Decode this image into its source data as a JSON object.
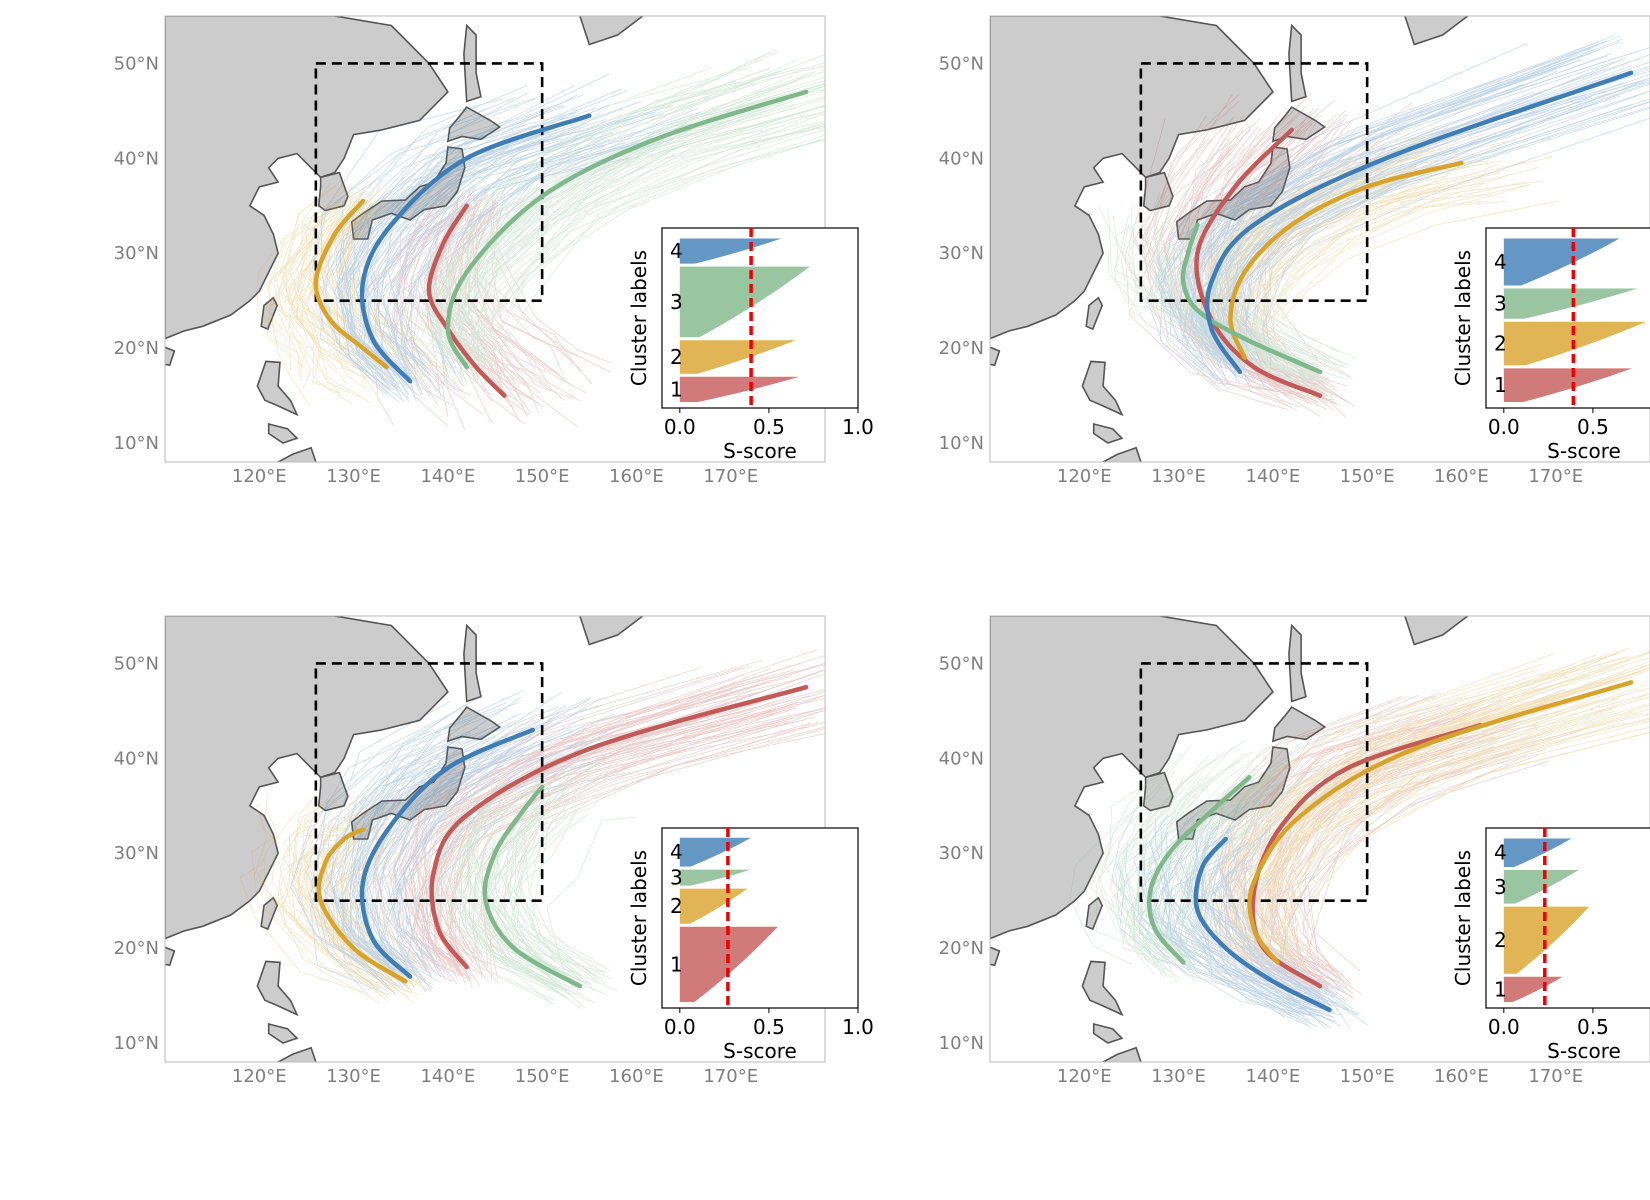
{
  "colors": {
    "cluster_1": "#c45a57",
    "cluster_2": "#d9a32b",
    "cluster_3": "#7fb88a",
    "cluster_4": "#3e7db6",
    "land": "#cccccc",
    "coast": "#555555",
    "box": "#000000",
    "threshold": "#ee0000"
  },
  "map_axes": {
    "x_ticks": [
      "120°E",
      "130°E",
      "140°E",
      "150°E",
      "160°E",
      "170°E"
    ],
    "x_tick_values": [
      120,
      130,
      140,
      150,
      160,
      170
    ],
    "y_ticks": [
      "10°N",
      "20°N",
      "30°N",
      "40°N",
      "50°N"
    ],
    "y_tick_values": [
      10,
      20,
      30,
      40,
      50
    ],
    "xlim": [
      110,
      180
    ],
    "ylim": [
      8,
      55
    ],
    "region_box": {
      "lon": [
        126,
        150
      ],
      "lat": [
        25,
        50
      ]
    }
  },
  "inset_axes": {
    "xlabel": "S-score",
    "ylabel": "Cluster labels",
    "x_ticks": [
      "0.0",
      "0.5",
      "1.0"
    ],
    "x_tick_values": [
      0,
      0.5,
      1.0
    ],
    "xlim": [
      -0.1,
      1.0
    ]
  },
  "chart_data": [
    {
      "type": "line",
      "panel": "top-left",
      "silhouette_threshold": 0.4,
      "series": [
        {
          "label": "1",
          "color_key": "cluster_1",
          "s_max": 0.67,
          "lon": [
            142,
            139.5,
            138,
            140,
            143,
            146
          ],
          "lat": [
            35,
            31,
            26,
            22,
            18,
            15
          ]
        },
        {
          "label": "2",
          "color_key": "cluster_2",
          "s_max": 0.65,
          "lon": [
            131,
            128,
            126,
            127.5,
            131,
            133.5
          ],
          "lat": [
            35.5,
            32,
            27,
            23,
            20,
            18
          ]
        },
        {
          "label": "3",
          "color_key": "cluster_3",
          "s_max": 0.73,
          "lon": [
            142,
            140,
            142,
            150,
            162,
            178
          ],
          "lat": [
            18,
            22,
            28,
            36,
            42,
            47
          ]
        },
        {
          "label": "4",
          "color_key": "cluster_4",
          "s_max": 0.57,
          "lon": [
            136,
            132,
            131,
            134,
            142,
            155
          ],
          "lat": [
            16.5,
            21,
            27,
            33,
            40,
            44.5
          ]
        }
      ],
      "clusters": [
        {
          "label": "1",
          "rel_size": 0.15
        },
        {
          "label": "2",
          "rel_size": 0.2
        },
        {
          "label": "3",
          "rel_size": 0.42
        },
        {
          "label": "4",
          "rel_size": 0.15
        }
      ]
    },
    {
      "type": "line",
      "panel": "top-right",
      "silhouette_threshold": 0.39,
      "series": [
        {
          "label": "1",
          "color_key": "cluster_1",
          "s_max": 0.72,
          "lon": [
            145,
            138,
            133.5,
            132,
            136,
            142
          ],
          "lat": [
            15,
            18,
            23,
            30,
            37,
            43
          ]
        },
        {
          "label": "2",
          "color_key": "cluster_2",
          "s_max": 0.8,
          "lon": [
            137,
            135.5,
            137,
            142,
            150,
            160
          ],
          "lat": [
            19,
            23,
            28,
            33,
            37,
            39.5
          ]
        },
        {
          "label": "3",
          "color_key": "cluster_3",
          "s_max": 0.75,
          "lon": [
            145,
            137,
            132,
            130.5,
            131,
            132
          ],
          "lat": [
            17.5,
            21,
            24,
            27,
            30,
            33
          ]
        },
        {
          "label": "4",
          "color_key": "cluster_4",
          "s_max": 0.65,
          "lon": [
            136.5,
            133.5,
            133.5,
            138,
            152,
            178
          ],
          "lat": [
            17.5,
            22,
            27,
            33,
            40,
            49
          ]
        }
      ],
      "clusters": [
        {
          "label": "1",
          "rel_size": 0.2
        },
        {
          "label": "2",
          "rel_size": 0.26
        },
        {
          "label": "3",
          "rel_size": 0.18
        },
        {
          "label": "4",
          "rel_size": 0.28
        }
      ]
    },
    {
      "type": "line",
      "panel": "bottom-left",
      "silhouette_threshold": 0.27,
      "series": [
        {
          "label": "1",
          "color_key": "cluster_1",
          "s_max": 0.55,
          "lon": [
            142,
            139,
            138.5,
            142,
            155,
            178
          ],
          "lat": [
            18,
            22,
            28,
            34,
            41,
            47.5
          ]
        },
        {
          "label": "2",
          "color_key": "cluster_2",
          "s_max": 0.38,
          "lon": [
            135.5,
            130,
            126.5,
            127,
            129,
            131
          ],
          "lat": [
            16.5,
            20,
            25,
            29,
            31.5,
            32.5
          ]
        },
        {
          "label": "3",
          "color_key": "cluster_3",
          "s_max": 0.4,
          "lon": [
            154,
            147,
            144,
            145,
            148,
            150
          ],
          "lat": [
            16,
            20,
            25,
            30,
            34.5,
            37
          ]
        },
        {
          "label": "4",
          "color_key": "cluster_4",
          "s_max": 0.4,
          "lon": [
            136,
            132,
            131,
            134,
            140,
            149
          ],
          "lat": [
            17,
            21,
            27,
            33,
            39,
            43
          ]
        }
      ],
      "clusters": [
        {
          "label": "1",
          "rel_size": 0.47
        },
        {
          "label": "2",
          "rel_size": 0.22
        },
        {
          "label": "3",
          "rel_size": 0.1
        },
        {
          "label": "4",
          "rel_size": 0.18
        }
      ]
    },
    {
      "type": "line",
      "panel": "bottom-right",
      "silhouette_threshold": 0.23,
      "series": [
        {
          "label": "1",
          "color_key": "cluster_1",
          "s_max": 0.33,
          "lon": [
            145,
            139,
            138,
            141,
            148,
            162
          ],
          "lat": [
            16,
            20,
            26,
            33,
            39,
            43.5
          ]
        },
        {
          "label": "2",
          "color_key": "cluster_2",
          "s_max": 0.48,
          "lon": [
            140.5,
            138,
            138,
            143,
            155,
            178
          ],
          "lat": [
            18.5,
            22,
            27,
            34,
            41,
            48
          ]
        },
        {
          "label": "3",
          "color_key": "cluster_3",
          "s_max": 0.42,
          "lon": [
            130.5,
            127.5,
            127,
            129,
            133,
            137.5
          ],
          "lat": [
            18.5,
            22,
            26,
            30,
            34,
            38
          ]
        },
        {
          "label": "4",
          "color_key": "cluster_4",
          "s_max": 0.38,
          "lon": [
            146,
            140,
            135,
            132,
            132.5,
            135
          ],
          "lat": [
            13.5,
            16.5,
            20,
            24,
            28.5,
            31.5
          ]
        }
      ],
      "clusters": [
        {
          "label": "1",
          "rel_size": 0.15
        },
        {
          "label": "2",
          "rel_size": 0.4
        },
        {
          "label": "3",
          "rel_size": 0.2
        },
        {
          "label": "4",
          "rel_size": 0.17
        }
      ]
    }
  ]
}
